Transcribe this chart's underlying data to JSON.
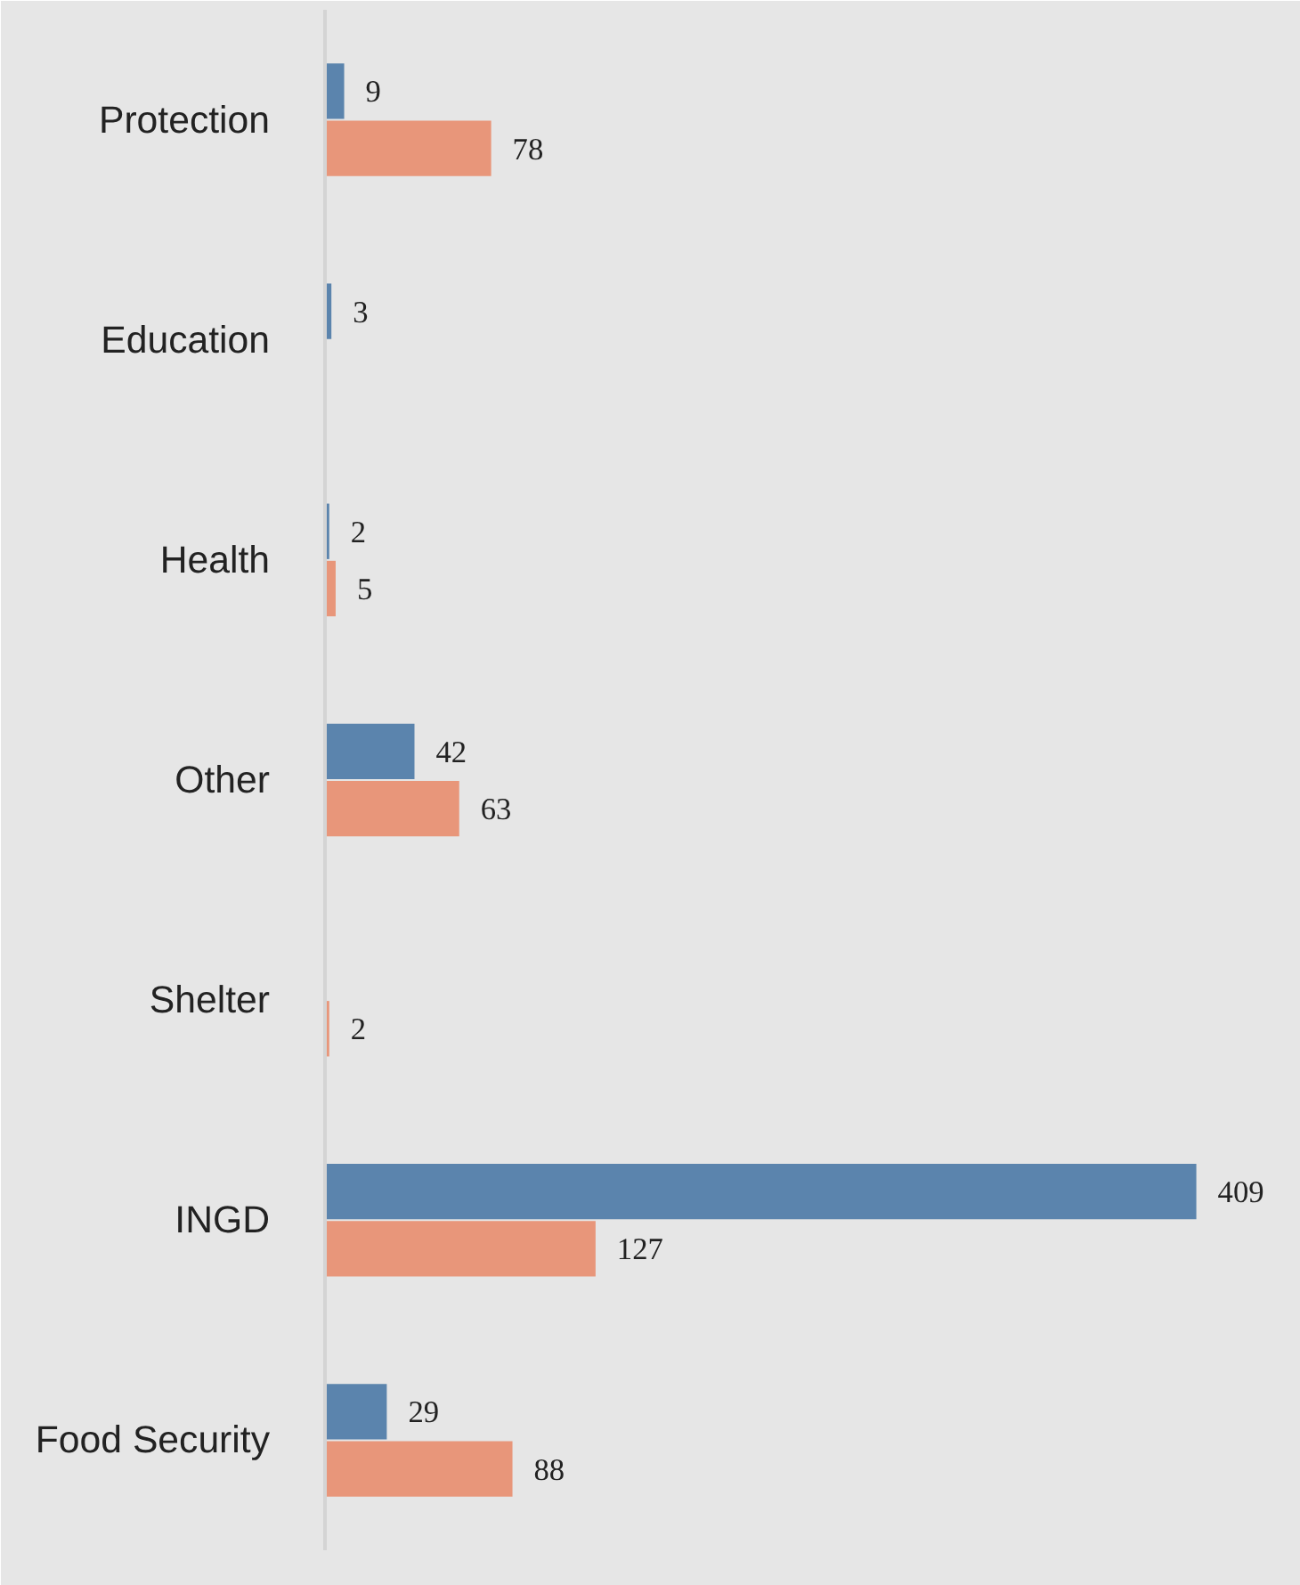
{
  "chart_data": {
    "type": "bar",
    "orientation": "horizontal",
    "data_labels": true,
    "categories": [
      "Protection",
      "Education",
      "Health",
      "Other",
      "Shelter",
      "INGD",
      "Food Security"
    ],
    "series": [
      {
        "color": "#5b84ad",
        "values": [
          9,
          3,
          2,
          42,
          null,
          409,
          29
        ]
      },
      {
        "color": "#e8967a",
        "values": [
          78,
          null,
          5,
          63,
          2,
          127,
          88
        ]
      }
    ]
  }
}
